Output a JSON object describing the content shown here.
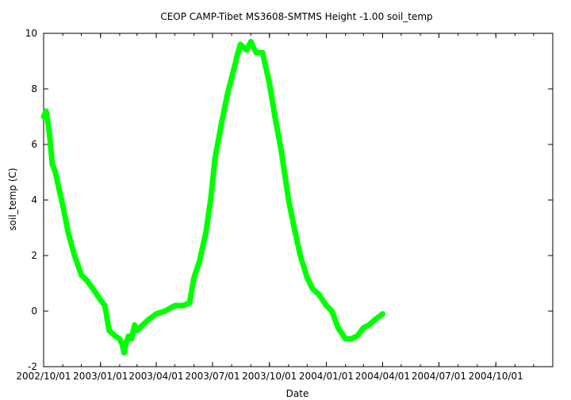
{
  "chart_data": {
    "type": "line",
    "title": "CEOP CAMP-Tibet MS3608-SMTMS Height -1.00 soil_temp",
    "xlabel": "Date",
    "ylabel": "soil_temp (C)",
    "xlim": [
      "2002-10-01",
      "2005-01-01"
    ],
    "ylim": [
      -2,
      10
    ],
    "x_tick_labels": [
      "2002/10/01",
      "2003/01/01",
      "2003/04/01",
      "2003/07/01",
      "2003/10/01",
      "2004/01/01",
      "2004/04/01",
      "2004/07/01",
      "2004/10/01"
    ],
    "y_ticks": [
      -2,
      0,
      2,
      4,
      6,
      8,
      10
    ],
    "grid": false,
    "line_color": "#00ff00",
    "series": [
      {
        "x": [
          "2002-10-01",
          "2002-10-05",
          "2002-10-10",
          "2002-10-15",
          "2002-10-20",
          "2002-10-25",
          "2002-11-01",
          "2002-11-10",
          "2002-11-20",
          "2002-12-01",
          "2002-12-10",
          "2002-12-20",
          "2003-01-01",
          "2003-01-08",
          "2003-01-15",
          "2003-01-25",
          "2003-02-01",
          "2003-02-05",
          "2003-02-08",
          "2003-02-12",
          "2003-02-15",
          "2003-02-20",
          "2003-02-25",
          "2003-03-01",
          "2003-03-10",
          "2003-03-20",
          "2003-04-01",
          "2003-04-15",
          "2003-05-01",
          "2003-05-15",
          "2003-05-25",
          "2003-06-01",
          "2003-06-10",
          "2003-06-20",
          "2003-06-28",
          "2003-07-05",
          "2003-07-15",
          "2003-07-25",
          "2003-08-01",
          "2003-08-10",
          "2003-08-15",
          "2003-08-20",
          "2003-08-25",
          "2003-09-01",
          "2003-09-05",
          "2003-09-10",
          "2003-09-20",
          "2003-10-01",
          "2003-10-10",
          "2003-10-20",
          "2003-11-01",
          "2003-11-10",
          "2003-11-20",
          "2003-12-01",
          "2003-12-10",
          "2003-12-20",
          "2004-01-01",
          "2004-01-10",
          "2004-01-20",
          "2004-02-01",
          "2004-02-10",
          "2004-02-20",
          "2004-03-01",
          "2004-03-10",
          "2004-03-20",
          "2004-04-01"
        ],
        "values": [
          7.0,
          7.2,
          6.5,
          5.3,
          5.0,
          4.5,
          3.8,
          2.8,
          2.0,
          1.3,
          1.1,
          0.8,
          0.4,
          0.2,
          -0.7,
          -0.9,
          -1.0,
          -1.2,
          -1.5,
          -1.1,
          -0.9,
          -1.0,
          -0.5,
          -0.7,
          -0.5,
          -0.3,
          -0.1,
          0.0,
          0.2,
          0.2,
          0.3,
          1.2,
          1.8,
          2.8,
          4.0,
          5.5,
          6.7,
          7.8,
          8.4,
          9.2,
          9.6,
          9.5,
          9.4,
          9.7,
          9.5,
          9.3,
          9.3,
          8.2,
          7.0,
          5.8,
          4.0,
          3.0,
          2.0,
          1.2,
          0.8,
          0.6,
          0.2,
          0.0,
          -0.6,
          -1.0,
          -1.0,
          -0.9,
          -0.6,
          -0.5,
          -0.3,
          -0.1
        ]
      }
    ]
  }
}
